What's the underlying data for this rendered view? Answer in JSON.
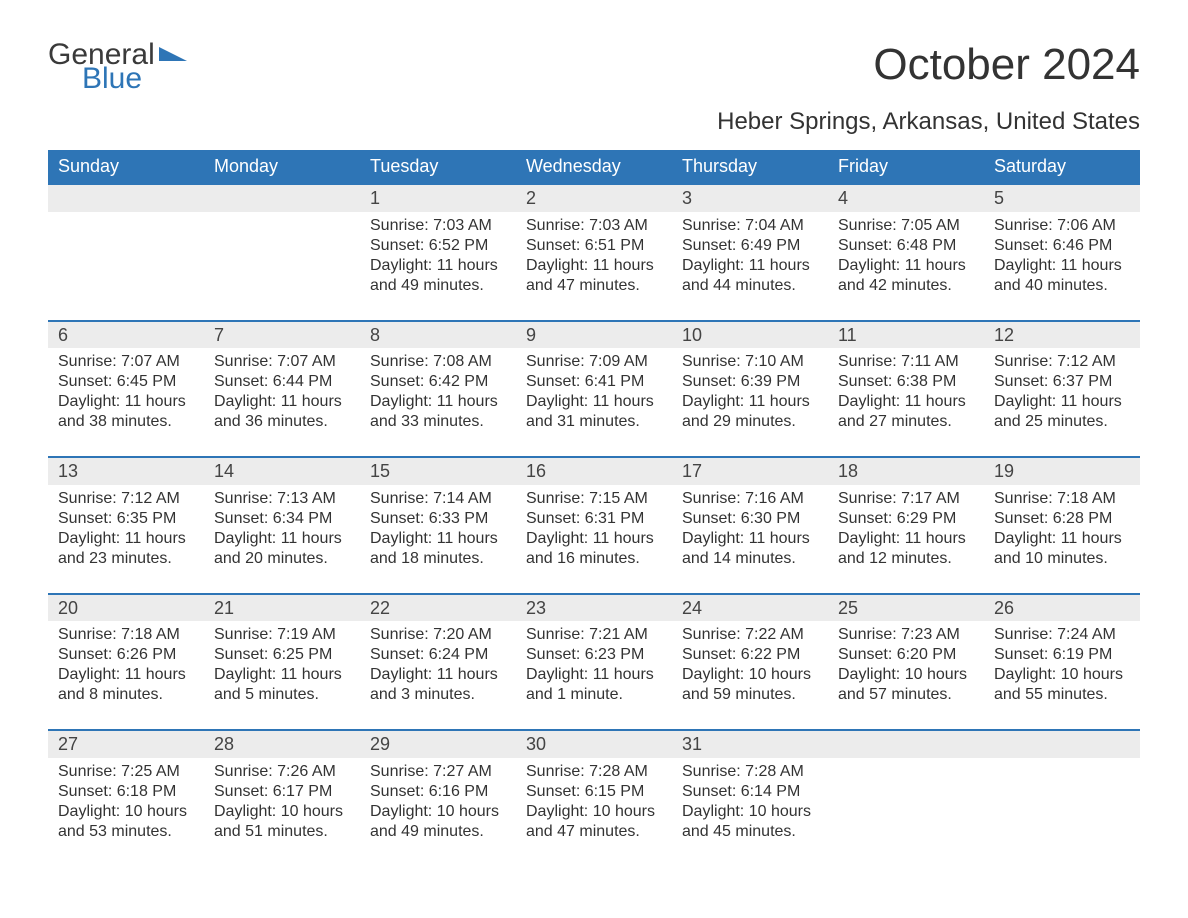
{
  "logo": {
    "word1": "General",
    "word2": "Blue"
  },
  "title": "October 2024",
  "location": "Heber Springs, Arkansas, United States",
  "colors": {
    "accent": "#2e75b6",
    "text": "#333333",
    "muted_bg": "#ececec",
    "background": "#ffffff"
  },
  "day_headers": [
    "Sunday",
    "Monday",
    "Tuesday",
    "Wednesday",
    "Thursday",
    "Friday",
    "Saturday"
  ],
  "weeks": [
    [
      {
        "blank": true
      },
      {
        "blank": true
      },
      {
        "day": "1",
        "sunrise": "Sunrise: 7:03 AM",
        "sunset": "Sunset: 6:52 PM",
        "daylight": "Daylight: 11 hours and 49 minutes."
      },
      {
        "day": "2",
        "sunrise": "Sunrise: 7:03 AM",
        "sunset": "Sunset: 6:51 PM",
        "daylight": "Daylight: 11 hours and 47 minutes."
      },
      {
        "day": "3",
        "sunrise": "Sunrise: 7:04 AM",
        "sunset": "Sunset: 6:49 PM",
        "daylight": "Daylight: 11 hours and 44 minutes."
      },
      {
        "day": "4",
        "sunrise": "Sunrise: 7:05 AM",
        "sunset": "Sunset: 6:48 PM",
        "daylight": "Daylight: 11 hours and 42 minutes."
      },
      {
        "day": "5",
        "sunrise": "Sunrise: 7:06 AM",
        "sunset": "Sunset: 6:46 PM",
        "daylight": "Daylight: 11 hours and 40 minutes."
      }
    ],
    [
      {
        "day": "6",
        "sunrise": "Sunrise: 7:07 AM",
        "sunset": "Sunset: 6:45 PM",
        "daylight": "Daylight: 11 hours and 38 minutes."
      },
      {
        "day": "7",
        "sunrise": "Sunrise: 7:07 AM",
        "sunset": "Sunset: 6:44 PM",
        "daylight": "Daylight: 11 hours and 36 minutes."
      },
      {
        "day": "8",
        "sunrise": "Sunrise: 7:08 AM",
        "sunset": "Sunset: 6:42 PM",
        "daylight": "Daylight: 11 hours and 33 minutes."
      },
      {
        "day": "9",
        "sunrise": "Sunrise: 7:09 AM",
        "sunset": "Sunset: 6:41 PM",
        "daylight": "Daylight: 11 hours and 31 minutes."
      },
      {
        "day": "10",
        "sunrise": "Sunrise: 7:10 AM",
        "sunset": "Sunset: 6:39 PM",
        "daylight": "Daylight: 11 hours and 29 minutes."
      },
      {
        "day": "11",
        "sunrise": "Sunrise: 7:11 AM",
        "sunset": "Sunset: 6:38 PM",
        "daylight": "Daylight: 11 hours and 27 minutes."
      },
      {
        "day": "12",
        "sunrise": "Sunrise: 7:12 AM",
        "sunset": "Sunset: 6:37 PM",
        "daylight": "Daylight: 11 hours and 25 minutes."
      }
    ],
    [
      {
        "day": "13",
        "sunrise": "Sunrise: 7:12 AM",
        "sunset": "Sunset: 6:35 PM",
        "daylight": "Daylight: 11 hours and 23 minutes."
      },
      {
        "day": "14",
        "sunrise": "Sunrise: 7:13 AM",
        "sunset": "Sunset: 6:34 PM",
        "daylight": "Daylight: 11 hours and 20 minutes."
      },
      {
        "day": "15",
        "sunrise": "Sunrise: 7:14 AM",
        "sunset": "Sunset: 6:33 PM",
        "daylight": "Daylight: 11 hours and 18 minutes."
      },
      {
        "day": "16",
        "sunrise": "Sunrise: 7:15 AM",
        "sunset": "Sunset: 6:31 PM",
        "daylight": "Daylight: 11 hours and 16 minutes."
      },
      {
        "day": "17",
        "sunrise": "Sunrise: 7:16 AM",
        "sunset": "Sunset: 6:30 PM",
        "daylight": "Daylight: 11 hours and 14 minutes."
      },
      {
        "day": "18",
        "sunrise": "Sunrise: 7:17 AM",
        "sunset": "Sunset: 6:29 PM",
        "daylight": "Daylight: 11 hours and 12 minutes."
      },
      {
        "day": "19",
        "sunrise": "Sunrise: 7:18 AM",
        "sunset": "Sunset: 6:28 PM",
        "daylight": "Daylight: 11 hours and 10 minutes."
      }
    ],
    [
      {
        "day": "20",
        "sunrise": "Sunrise: 7:18 AM",
        "sunset": "Sunset: 6:26 PM",
        "daylight": "Daylight: 11 hours and 8 minutes."
      },
      {
        "day": "21",
        "sunrise": "Sunrise: 7:19 AM",
        "sunset": "Sunset: 6:25 PM",
        "daylight": "Daylight: 11 hours and 5 minutes."
      },
      {
        "day": "22",
        "sunrise": "Sunrise: 7:20 AM",
        "sunset": "Sunset: 6:24 PM",
        "daylight": "Daylight: 11 hours and 3 minutes."
      },
      {
        "day": "23",
        "sunrise": "Sunrise: 7:21 AM",
        "sunset": "Sunset: 6:23 PM",
        "daylight": "Daylight: 11 hours and 1 minute."
      },
      {
        "day": "24",
        "sunrise": "Sunrise: 7:22 AM",
        "sunset": "Sunset: 6:22 PM",
        "daylight": "Daylight: 10 hours and 59 minutes."
      },
      {
        "day": "25",
        "sunrise": "Sunrise: 7:23 AM",
        "sunset": "Sunset: 6:20 PM",
        "daylight": "Daylight: 10 hours and 57 minutes."
      },
      {
        "day": "26",
        "sunrise": "Sunrise: 7:24 AM",
        "sunset": "Sunset: 6:19 PM",
        "daylight": "Daylight: 10 hours and 55 minutes."
      }
    ],
    [
      {
        "day": "27",
        "sunrise": "Sunrise: 7:25 AM",
        "sunset": "Sunset: 6:18 PM",
        "daylight": "Daylight: 10 hours and 53 minutes."
      },
      {
        "day": "28",
        "sunrise": "Sunrise: 7:26 AM",
        "sunset": "Sunset: 6:17 PM",
        "daylight": "Daylight: 10 hours and 51 minutes."
      },
      {
        "day": "29",
        "sunrise": "Sunrise: 7:27 AM",
        "sunset": "Sunset: 6:16 PM",
        "daylight": "Daylight: 10 hours and 49 minutes."
      },
      {
        "day": "30",
        "sunrise": "Sunrise: 7:28 AM",
        "sunset": "Sunset: 6:15 PM",
        "daylight": "Daylight: 10 hours and 47 minutes."
      },
      {
        "day": "31",
        "sunrise": "Sunrise: 7:28 AM",
        "sunset": "Sunset: 6:14 PM",
        "daylight": "Daylight: 10 hours and 45 minutes."
      },
      {
        "blank": true
      },
      {
        "blank": true
      }
    ]
  ]
}
